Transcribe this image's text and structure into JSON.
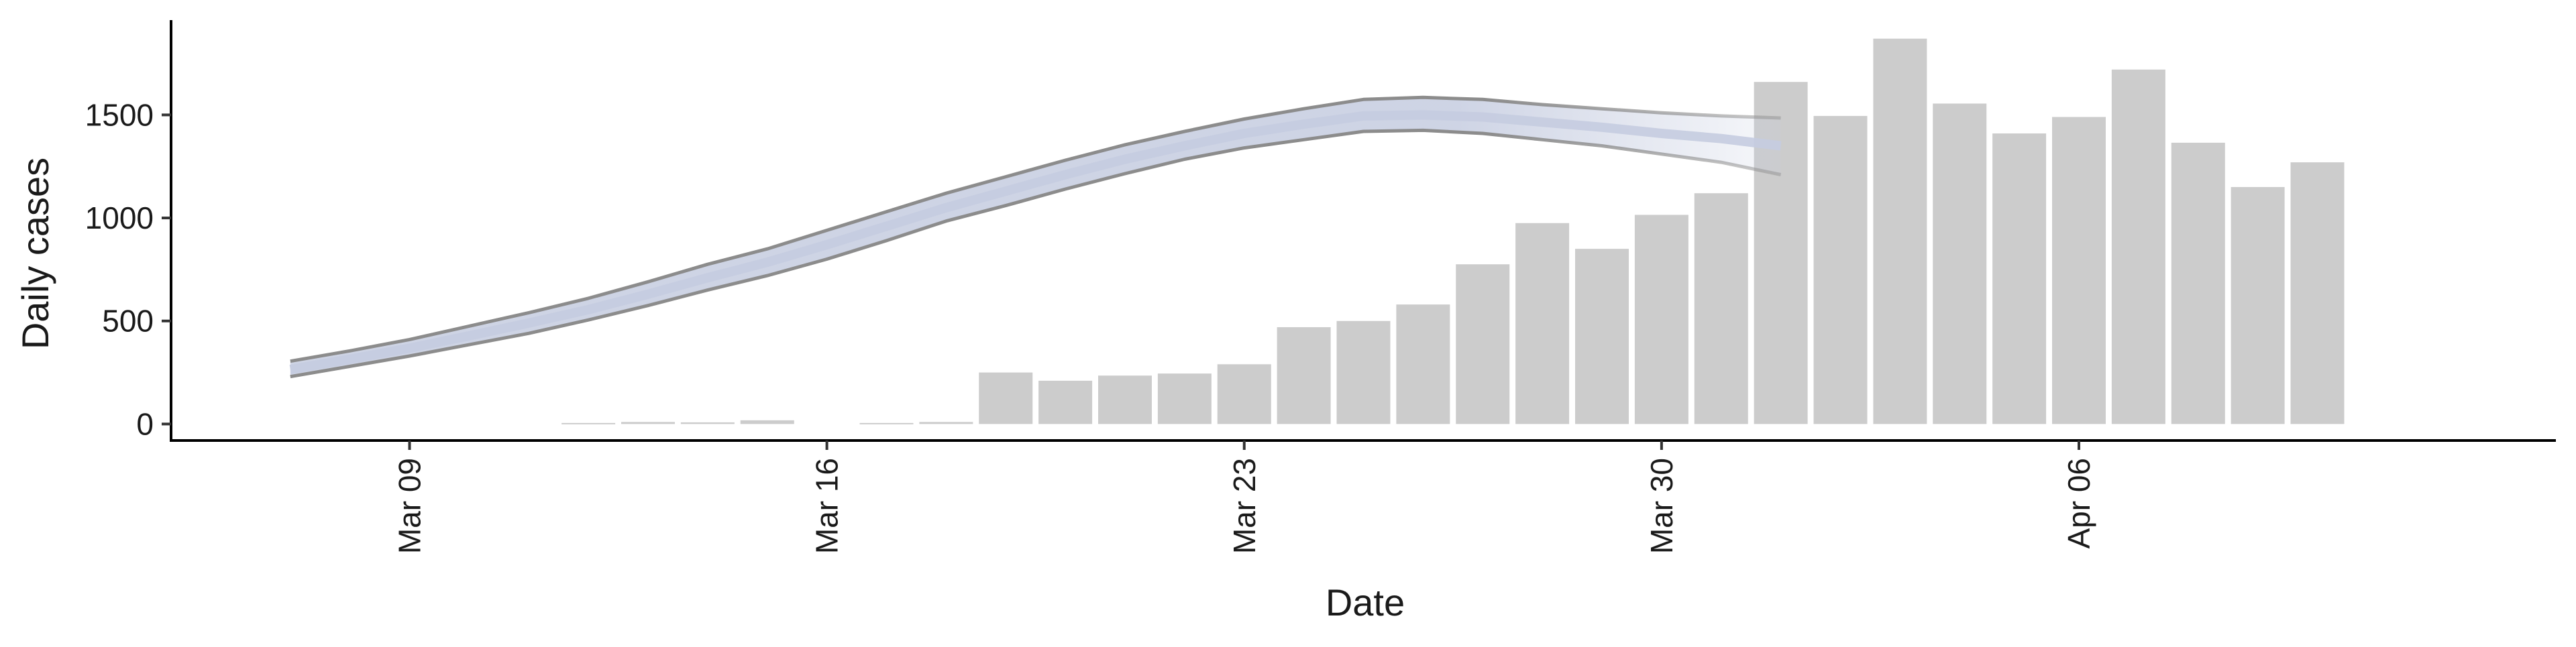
{
  "chart_data": {
    "type": "bar",
    "xlabel": "Date",
    "ylabel": "Daily cases",
    "ylim": [
      -80,
      1960
    ],
    "y_ticks": [
      0,
      500,
      1000,
      1500
    ],
    "x_ticks": [
      {
        "date": "2020-03-09",
        "label": "Mar 09"
      },
      {
        "date": "2020-03-16",
        "label": "Mar 16"
      },
      {
        "date": "2020-03-23",
        "label": "Mar 23"
      },
      {
        "date": "2020-03-30",
        "label": "Mar 30"
      },
      {
        "date": "2020-04-06",
        "label": "Apr 06"
      }
    ],
    "xlim": [
      "2020-03-05",
      "2020-04-14"
    ],
    "grid": false,
    "bar_color": "#cccccc",
    "band_color": "#c5cce0",
    "band_line_color": "#8c8c8c",
    "series": [
      {
        "type": "bar",
        "x": [
          "2020-03-12",
          "2020-03-13",
          "2020-03-14",
          "2020-03-15",
          "2020-03-17",
          "2020-03-18",
          "2020-03-19",
          "2020-03-20",
          "2020-03-21",
          "2020-03-22",
          "2020-03-23",
          "2020-03-24",
          "2020-03-25",
          "2020-03-26",
          "2020-03-27",
          "2020-03-28",
          "2020-03-29",
          "2020-03-30",
          "2020-03-31",
          "2020-04-01",
          "2020-04-02",
          "2020-04-03",
          "2020-04-04",
          "2020-04-05",
          "2020-04-06",
          "2020-04-07",
          "2020-04-08",
          "2020-04-09",
          "2020-04-10"
        ],
        "values": [
          5,
          10,
          8,
          18,
          5,
          10,
          250,
          210,
          235,
          245,
          290,
          470,
          500,
          580,
          775,
          975,
          850,
          1015,
          1120,
          1660,
          1495,
          1870,
          1555,
          1410,
          1490,
          1720,
          1365,
          1150,
          1270
        ]
      },
      {
        "type": "band",
        "x": [
          "2020-03-07",
          "2020-03-08",
          "2020-03-09",
          "2020-03-10",
          "2020-03-11",
          "2020-03-12",
          "2020-03-13",
          "2020-03-14",
          "2020-03-15",
          "2020-03-16",
          "2020-03-17",
          "2020-03-18",
          "2020-03-19",
          "2020-03-20",
          "2020-03-21",
          "2020-03-22",
          "2020-03-23",
          "2020-03-24",
          "2020-03-25",
          "2020-03-26",
          "2020-03-27",
          "2020-03-28",
          "2020-03-29",
          "2020-03-30",
          "2020-03-31",
          "2020-04-01"
        ],
        "upper": [
          305,
          355,
          410,
          475,
          540,
          610,
          690,
          775,
          850,
          940,
          1030,
          1120,
          1200,
          1280,
          1355,
          1420,
          1480,
          1530,
          1575,
          1585,
          1575,
          1550,
          1530,
          1510,
          1495,
          1485
        ],
        "lower": [
          230,
          280,
          330,
          385,
          440,
          505,
          575,
          650,
          720,
          800,
          890,
          985,
          1060,
          1140,
          1215,
          1285,
          1340,
          1380,
          1420,
          1425,
          1410,
          1380,
          1350,
          1310,
          1270,
          1210
        ],
        "mean": [
          265,
          315,
          368,
          428,
          490,
          555,
          630,
          710,
          785,
          870,
          960,
          1050,
          1130,
          1210,
          1285,
          1350,
          1410,
          1455,
          1495,
          1500,
          1490,
          1465,
          1440,
          1410,
          1385,
          1350
        ]
      }
    ]
  }
}
